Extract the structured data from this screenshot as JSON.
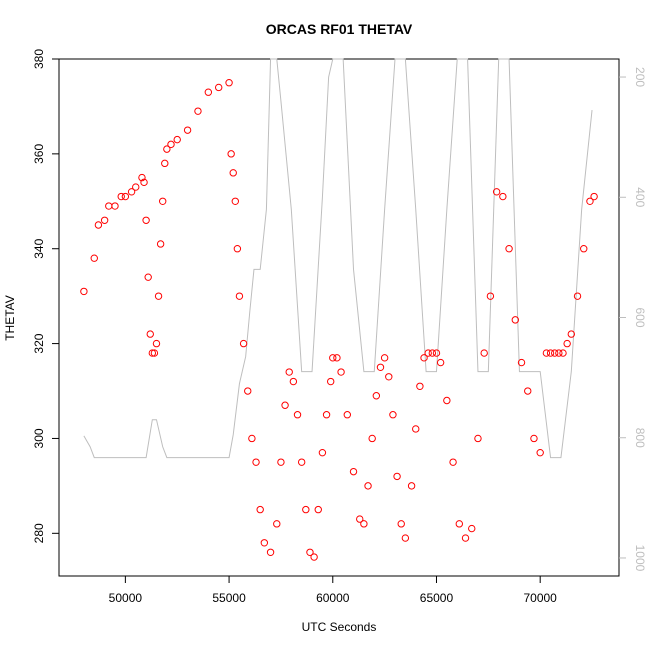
{
  "chart_data": {
    "type": "scatter",
    "title": "ORCAS RF01 THETAV",
    "xlabel": "UTC Seconds",
    "ylabel": "THETAV",
    "xlim": [
      46800,
      73800
    ],
    "ylim": [
      271,
      380
    ],
    "x_ticks": [
      50000,
      55000,
      60000,
      65000,
      70000
    ],
    "y_ticks": [
      280,
      300,
      320,
      340,
      360,
      380
    ],
    "secondary_axis": {
      "side": "right",
      "reversed": true,
      "ylim": [
        1030,
        170
      ],
      "ticks": [
        200,
        400,
        600,
        800,
        1000
      ],
      "color": "#bebebe"
    },
    "series": [
      {
        "marker": "open-circle",
        "color": "#ff0000",
        "x": [
          48000,
          48500,
          48700,
          49000,
          49200,
          49500,
          49800,
          50000,
          50300,
          50500,
          50800,
          50900,
          51000,
          51100,
          51200,
          51300,
          51400,
          51500,
          51600,
          51700,
          51800,
          51900,
          52000,
          52200,
          52500,
          53000,
          53500,
          54000,
          54500,
          55000,
          55100,
          55200,
          55300,
          55400,
          55500,
          55700,
          55900,
          56100,
          56300,
          56500,
          56700,
          57000,
          57300,
          57500,
          57700,
          57900,
          58100,
          58300,
          58500,
          58700,
          58900,
          59100,
          59300,
          59500,
          59700,
          59900,
          60000,
          60200,
          60400,
          60700,
          61000,
          61300,
          61500,
          61700,
          61900,
          62100,
          62300,
          62500,
          62700,
          62900,
          63100,
          63300,
          63500,
          63800,
          64000,
          64200,
          64400,
          64600,
          64800,
          65000,
          65200,
          65500,
          65800,
          66100,
          66400,
          66700,
          67000,
          67300,
          67600,
          67900,
          68200,
          68500,
          68800,
          69100,
          69400,
          69700,
          70000,
          70300,
          70500,
          70700,
          70900,
          71100,
          71300,
          71500,
          71800,
          72100,
          72400,
          72600
        ],
        "y": [
          331,
          338,
          345,
          346,
          349,
          349,
          351,
          351,
          352,
          353,
          355,
          354,
          346,
          334,
          322,
          318,
          318,
          320,
          330,
          341,
          350,
          358,
          361,
          362,
          363,
          365,
          369,
          373,
          374,
          375,
          360,
          356,
          350,
          340,
          330,
          320,
          310,
          300,
          295,
          285,
          278,
          276,
          282,
          295,
          307,
          314,
          312,
          305,
          295,
          285,
          276,
          275,
          285,
          297,
          305,
          312,
          317,
          317,
          314,
          305,
          293,
          283,
          282,
          290,
          300,
          309,
          315,
          317,
          313,
          305,
          292,
          282,
          279,
          290,
          302,
          311,
          317,
          318,
          318,
          318,
          316,
          308,
          295,
          282,
          279,
          281,
          300,
          318,
          330,
          352,
          351,
          340,
          325,
          316,
          310,
          300,
          297,
          318,
          318,
          318,
          318,
          318,
          320,
          322,
          330,
          340,
          350,
          351
        ]
      }
    ],
    "background_line": {
      "color": "#bebebe",
      "x": [
        48000,
        48300,
        48500,
        51000,
        51300,
        51500,
        51800,
        52000,
        55000,
        55200,
        55500,
        55800,
        56000,
        56200,
        56500,
        56800,
        57000,
        57300,
        57500,
        58000,
        58500,
        59000,
        59500,
        59800,
        60000,
        60500,
        61000,
        61500,
        62000,
        62500,
        63000,
        63500,
        64000,
        64500,
        65000,
        65500,
        66000,
        66500,
        67000,
        67500,
        68000,
        68500,
        69000,
        69500,
        70000,
        70500,
        71000,
        71500,
        72000,
        72500
      ],
      "y": [
        797,
        815,
        833,
        833,
        770,
        770,
        815,
        833,
        833,
        795,
        710,
        665,
        590,
        520,
        520,
        420,
        170,
        170,
        240,
        420,
        690,
        690,
        400,
        200,
        170,
        170,
        520,
        690,
        690,
        420,
        170,
        170,
        420,
        690,
        690,
        420,
        170,
        170,
        690,
        690,
        170,
        170,
        690,
        690,
        690,
        833,
        833,
        690,
        420,
        255
      ]
    }
  }
}
